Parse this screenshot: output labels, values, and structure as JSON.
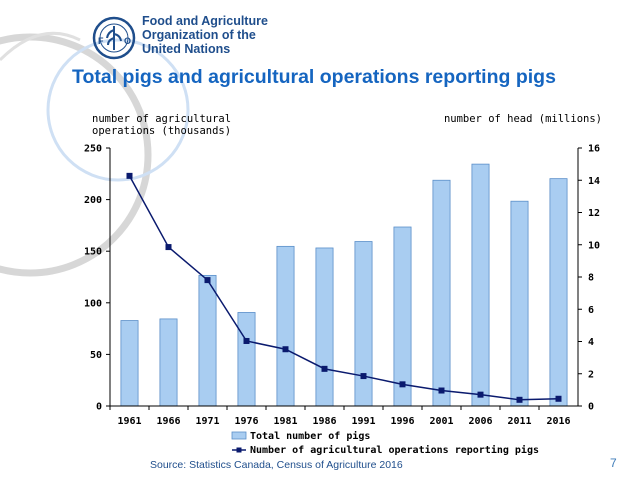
{
  "header": {
    "org_lines": [
      "Food and Agriculture",
      "Organization of the",
      "United Nations"
    ],
    "logo_text": "FAO FIAT PANIS"
  },
  "slide": {
    "title": "Total pigs and agricultural operations reporting pigs",
    "source": "Source: Statistics Canada, Census of Agriculture 2016",
    "page_number": "7"
  },
  "colors": {
    "title": "#1565c0",
    "bars": "#a9cdf1",
    "bar_border": "#5b8fc9",
    "line": "#0a1a6e",
    "org_text": "#1f4e8c"
  },
  "chart_data": {
    "type": "bar",
    "categories": [
      "1961",
      "1966",
      "1971",
      "1976",
      "1981",
      "1986",
      "1991",
      "1996",
      "2001",
      "2006",
      "2011",
      "2016"
    ],
    "ylabel": "number of agricultural operations (thousands)",
    "ylabel_lines": [
      "number of agricultural",
      "operations (thousands)"
    ],
    "y2label": "number of head (millions)",
    "ylim": [
      0,
      250
    ],
    "yticks": [
      0,
      50,
      100,
      150,
      200,
      250
    ],
    "y2lim": [
      0,
      16
    ],
    "y2ticks": [
      0,
      2,
      4,
      6,
      8,
      10,
      12,
      14,
      16
    ],
    "grid": false,
    "legend_position": "bottom",
    "series": [
      {
        "name": "Total number of pigs",
        "type": "bar",
        "axis": "right",
        "values": [
          5.3,
          5.4,
          8.1,
          5.8,
          9.9,
          9.8,
          10.2,
          11.1,
          14.0,
          15.0,
          12.7,
          14.1
        ]
      },
      {
        "name": "Number of agricultural operations reporting pigs",
        "type": "line",
        "axis": "left",
        "values": [
          223,
          154,
          122,
          63,
          55,
          36,
          29,
          21,
          15,
          11,
          6,
          7
        ]
      }
    ]
  }
}
